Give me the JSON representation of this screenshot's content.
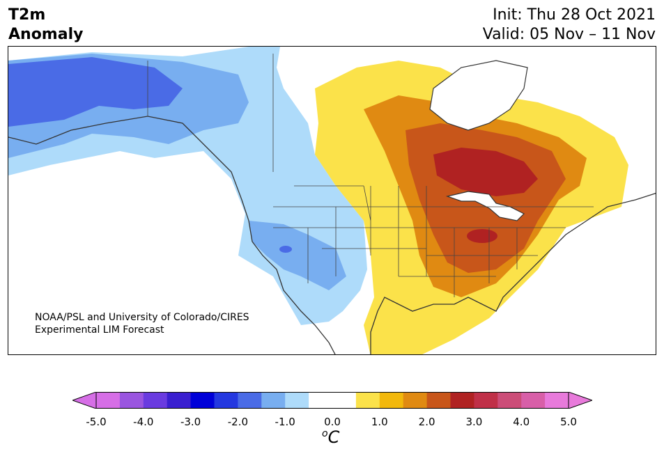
{
  "header": {
    "title_line1": "T2m",
    "title_line2": "Anomaly",
    "init": "Init: Thu 28 Oct 2021",
    "valid": "Valid: 05 Nov – 11 Nov"
  },
  "credit": {
    "line1": "NOAA/PSL and University of Colorado/CIRES",
    "line2": "Experimental LIM Forecast"
  },
  "colorbar": {
    "ticks": [
      "-5.0",
      "-4.0",
      "-3.0",
      "-2.0",
      "-1.0",
      "0.0",
      "1.0",
      "2.0",
      "3.0",
      "4.0",
      "5.0"
    ],
    "unit_sup": "o",
    "unit": "C",
    "colors": [
      "#d66ee6",
      "#9a55e0",
      "#6a3be0",
      "#3a1fd0",
      "#0000d8",
      "#2438e0",
      "#4a6be6",
      "#78aef0",
      "#aedbfa",
      "#ffffff",
      "#ffffff",
      "#fbe24a",
      "#f2b80c",
      "#e08a12",
      "#c8561a",
      "#b02222",
      "#c03048",
      "#cc4d78",
      "#d85fa8",
      "#e87adb"
    ],
    "under_color": "#d66ee6",
    "over_color": "#e87adb"
  }
}
